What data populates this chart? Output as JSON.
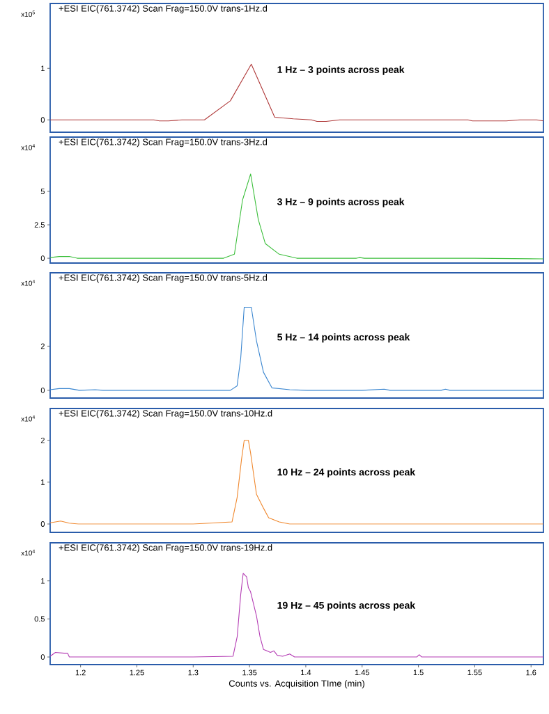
{
  "chart_data": [
    {
      "type": "line",
      "title": "+ESI EIC(761.3742) Scan Frag=150.0V trans-1Hz.d",
      "ylabel": "x10$^{5}$",
      "annotations": [
        "1 Hz – 3 points across peak"
      ],
      "color": "#b03a3a",
      "tick_labels": "y",
      "xlim": [
        1.173,
        1.611
      ],
      "ylim": [
        -0.24,
        2.26
      ],
      "yticks": [
        0,
        1
      ],
      "x": [
        1.173,
        1.19,
        1.21,
        1.23,
        1.25,
        1.265,
        1.27,
        1.278,
        1.29,
        1.31,
        1.333,
        1.3516,
        1.3724,
        1.389,
        1.405,
        1.41,
        1.418,
        1.43,
        1.46,
        1.5,
        1.544,
        1.548,
        1.578,
        1.59,
        1.605,
        1.611
      ],
      "values": [
        0,
        0,
        0,
        0,
        0,
        0,
        -0.02,
        -0.02,
        0,
        0,
        0.37,
        1.08,
        0.05,
        0.02,
        0,
        -0.03,
        -0.03,
        0,
        0,
        0,
        0,
        -0.02,
        -0.02,
        0,
        0,
        -0.02
      ]
    },
    {
      "type": "line",
      "title": "+ESI EIC(761.3742) Scan Frag=150.0V trans-3Hz.d",
      "ylabel": "x10$^{4}$",
      "annotations": [
        "3 Hz – 9 points across peak"
      ],
      "color": "#3cbf3c",
      "tick_labels": "y",
      "xlim": [
        1.173,
        1.611
      ],
      "ylim": [
        -0.36,
        9.06
      ],
      "yticks": [
        0,
        2.5,
        5
      ],
      "x": [
        1.173,
        1.181,
        1.19,
        1.197,
        1.25,
        1.3,
        1.327,
        1.3366,
        1.3438,
        1.351,
        1.3578,
        1.364,
        1.3764,
        1.392,
        1.42,
        1.445,
        1.448,
        1.452,
        1.5,
        1.55,
        1.611
      ],
      "values": [
        0.05,
        0.13,
        0.13,
        0,
        0,
        0,
        0,
        0.3,
        4.35,
        6.3,
        2.9,
        1.1,
        0.3,
        0,
        0,
        0,
        0.05,
        0,
        0,
        0,
        -0.05
      ]
    },
    {
      "type": "line",
      "title": "+ESI EIC(761.3742) Scan Frag=150.0V trans-5Hz.d",
      "ylabel": "x10$^{4}$",
      "annotations": [
        "5 Hz – 14 points across peak"
      ],
      "color": "#3a86d0",
      "tick_labels": "y",
      "xlim": [
        1.173,
        1.611
      ],
      "ylim": [
        -0.35,
        5.32
      ],
      "yticks": [
        0,
        2
      ],
      "x": [
        1.173,
        1.181,
        1.19,
        1.199,
        1.213,
        1.22,
        1.3,
        1.333,
        1.339,
        1.3422,
        1.3453,
        1.3516,
        1.3562,
        1.3624,
        1.37,
        1.3857,
        1.401,
        1.45,
        1.4696,
        1.475,
        1.52,
        1.524,
        1.528,
        1.611
      ],
      "values": [
        0.03,
        0.08,
        0.08,
        0,
        0.03,
        0,
        0,
        0,
        0.2,
        1.45,
        3.76,
        3.76,
        2.24,
        0.82,
        0.11,
        0.03,
        0,
        0,
        0.05,
        0,
        0,
        0.05,
        0,
        0
      ]
    },
    {
      "type": "line",
      "title": "+ESI EIC(761.3742) Scan Frag=150.0V trans-10Hz.d",
      "ylabel": "x10$^{4}$",
      "annotations": [
        "10 Hz – 24 points across peak"
      ],
      "color": "#f0882e",
      "tick_labels": "y",
      "xlim": [
        1.173,
        1.611
      ],
      "ylim": [
        -0.2,
        2.76
      ],
      "yticks": [
        0,
        1,
        2
      ],
      "x": [
        1.173,
        1.1823,
        1.19,
        1.198,
        1.3,
        1.3345,
        1.339,
        1.3429,
        1.3453,
        1.349,
        1.3509,
        1.3562,
        1.3624,
        1.367,
        1.3764,
        1.3857,
        1.45,
        1.5,
        1.611
      ],
      "values": [
        0.03,
        0.07,
        0.02,
        0,
        0,
        0.05,
        0.63,
        1.54,
        2.0,
        2.0,
        1.71,
        0.71,
        0.38,
        0.15,
        0.05,
        0,
        0,
        0,
        0
      ]
    },
    {
      "type": "line",
      "title": "+ESI EIC(761.3742) Scan Frag=150.0V trans-19Hz.d",
      "ylabel": "x10$^{4}$",
      "xlabel": "Counts vs. Acquisition TIme (min)",
      "annotations": [
        "19 Hz – 45 points across peak"
      ],
      "color": "#b43cb4",
      "xlim": [
        1.173,
        1.611
      ],
      "ylim": [
        -0.1,
        1.5
      ],
      "yticks": [
        0,
        0.5,
        1
      ],
      "xticks": [
        1.2,
        1.25,
        1.3,
        1.35,
        1.4,
        1.45,
        1.5,
        1.55,
        1.6
      ],
      "x": [
        1.173,
        1.1777,
        1.1854,
        1.1885,
        1.19,
        1.3,
        1.3354,
        1.3391,
        1.3422,
        1.3444,
        1.3475,
        1.349,
        1.3509,
        1.3562,
        1.3593,
        1.3624,
        1.3655,
        1.3686,
        1.3717,
        1.3748,
        1.3795,
        1.3857,
        1.39,
        1.45,
        1.4985,
        1.5006,
        1.503,
        1.611
      ],
      "values": [
        0.01,
        0.06,
        0.05,
        0.05,
        0,
        0,
        0.01,
        0.27,
        0.82,
        1.1,
        1.05,
        0.91,
        0.86,
        0.54,
        0.27,
        0.1,
        0.08,
        0.06,
        0.08,
        0.02,
        0.01,
        0.04,
        0,
        0,
        0,
        0.03,
        0,
        0
      ]
    }
  ]
}
